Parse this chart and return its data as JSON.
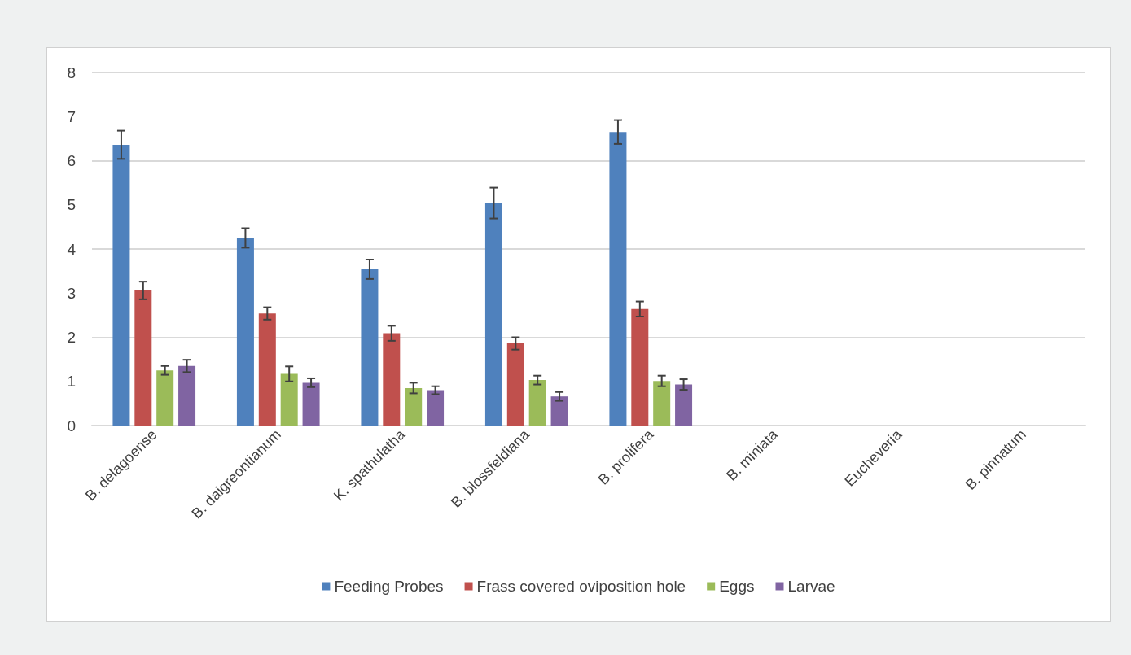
{
  "chart_data": {
    "type": "bar",
    "categories": [
      "B. delagoense",
      "B. daigreontianum",
      "K. spathulatha",
      "B. blossfeldiana",
      "B. prolifera",
      "B. miniata",
      "Eucheveria",
      "B. pinnatum"
    ],
    "series": [
      {
        "name": "Feeding Probes",
        "color": "#4f81bd",
        "values": [
          6.36,
          4.25,
          3.54,
          5.04,
          6.65,
          null,
          null,
          null
        ],
        "errors": [
          0.32,
          0.22,
          0.22,
          0.35,
          0.27,
          null,
          null,
          null
        ]
      },
      {
        "name": "Frass covered oviposition hole",
        "color": "#c0504d",
        "values": [
          3.06,
          2.54,
          2.09,
          1.86,
          2.64,
          null,
          null,
          null
        ],
        "errors": [
          0.2,
          0.14,
          0.17,
          0.14,
          0.17,
          null,
          null,
          null
        ]
      },
      {
        "name": "Eggs",
        "color": "#9bbb59",
        "values": [
          1.25,
          1.17,
          0.85,
          1.03,
          1.01,
          null,
          null,
          null
        ],
        "errors": [
          0.1,
          0.17,
          0.12,
          0.1,
          0.12,
          null,
          null,
          null
        ]
      },
      {
        "name": "Larvae",
        "color": "#8064a2",
        "values": [
          1.35,
          0.97,
          0.8,
          0.66,
          0.93,
          null,
          null,
          null
        ],
        "errors": [
          0.14,
          0.1,
          0.09,
          0.1,
          0.12,
          null,
          null,
          null
        ]
      }
    ],
    "ylim": [
      0,
      8
    ],
    "yticks": [
      0,
      1,
      2,
      3,
      4,
      5,
      6,
      7,
      8
    ],
    "grid": "y",
    "legend": "bottom"
  }
}
